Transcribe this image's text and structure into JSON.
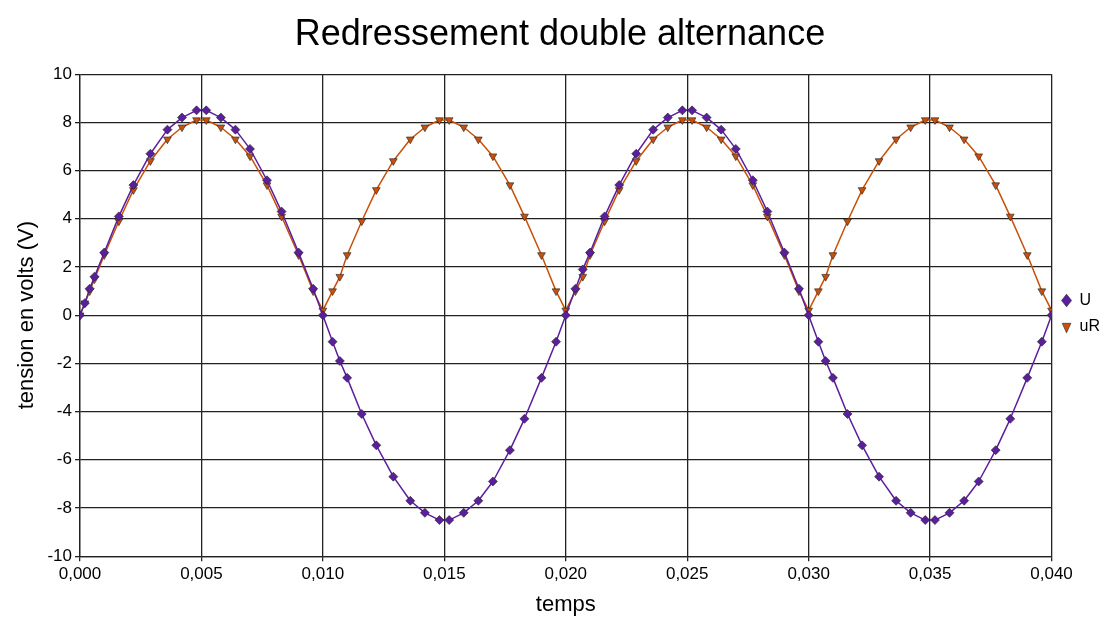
{
  "chart_data": {
    "type": "line",
    "title": "Redressement double alternance",
    "xlabel": "temps",
    "ylabel": "tension en volts (V)",
    "x": [
      0,
      0.0002,
      0.0004,
      0.0006,
      0.001,
      0.0016,
      0.0022,
      0.0029,
      0.0036,
      0.0042,
      0.0048,
      0.0052,
      0.0058,
      0.0064,
      0.007,
      0.0077,
      0.0083,
      0.009,
      0.0096,
      0.01,
      0.0104,
      0.0107,
      0.011,
      0.0116,
      0.0122,
      0.0129,
      0.0136,
      0.0142,
      0.0148,
      0.0152,
      0.0158,
      0.0164,
      0.017,
      0.0177,
      0.0183,
      0.019,
      0.0196,
      0.02,
      0.0204,
      0.0207,
      0.021,
      0.0216,
      0.0222,
      0.0229,
      0.0236,
      0.0242,
      0.0248,
      0.0252,
      0.0258,
      0.0264,
      0.027,
      0.0277,
      0.0283,
      0.029,
      0.0296,
      0.03,
      0.0304,
      0.0307,
      0.031,
      0.0316,
      0.0322,
      0.0329,
      0.0336,
      0.0342,
      0.0348,
      0.0352,
      0.0358,
      0.0364,
      0.037,
      0.0377,
      0.0383,
      0.039,
      0.0396,
      0.04
    ],
    "series": [
      {
        "name": "U",
        "color": "#5b1f9e",
        "marker": "diamond",
        "values": [
          0,
          0.5,
          1.1,
          1.6,
          2.6,
          4.1,
          5.4,
          6.7,
          7.7,
          8.2,
          8.5,
          8.5,
          8.2,
          7.7,
          6.9,
          5.6,
          4.3,
          2.6,
          1.1,
          0,
          -1.1,
          -1.9,
          -2.6,
          -4.1,
          -5.4,
          -6.7,
          -7.7,
          -8.2,
          -8.5,
          -8.5,
          -8.2,
          -7.7,
          -6.9,
          -5.6,
          -4.3,
          -2.6,
          -1.1,
          0,
          1.1,
          1.9,
          2.6,
          4.1,
          5.4,
          6.7,
          7.7,
          8.2,
          8.5,
          8.5,
          8.2,
          7.7,
          6.9,
          5.6,
          4.3,
          2.6,
          1.1,
          0,
          -1.1,
          -1.9,
          -2.6,
          -4.1,
          -5.4,
          -6.7,
          -7.7,
          -8.2,
          -8.5,
          -8.5,
          -8.2,
          -7.7,
          -6.9,
          -5.6,
          -4.3,
          -2.6,
          -1.1,
          0
        ]
      },
      {
        "name": "uR",
        "color": "#c8500a",
        "marker": "triangle",
        "values": [
          0,
          0.5,
          1.0,
          1.5,
          2.5,
          3.9,
          5.2,
          6.4,
          7.3,
          7.8,
          8.1,
          8.1,
          7.8,
          7.3,
          6.6,
          5.4,
          4.1,
          2.5,
          1.0,
          0.2,
          1.0,
          1.6,
          2.5,
          3.9,
          5.2,
          6.4,
          7.3,
          7.8,
          8.1,
          8.1,
          7.8,
          7.3,
          6.6,
          5.4,
          4.1,
          2.5,
          1.0,
          0.2,
          1.0,
          1.6,
          2.5,
          3.9,
          5.2,
          6.4,
          7.3,
          7.8,
          8.1,
          8.1,
          7.8,
          7.3,
          6.6,
          5.4,
          4.1,
          2.5,
          1.0,
          0.2,
          1.0,
          1.6,
          2.5,
          3.9,
          5.2,
          6.4,
          7.3,
          7.8,
          8.1,
          8.1,
          7.8,
          7.3,
          6.6,
          5.4,
          4.1,
          2.5,
          1.0,
          0.2
        ]
      }
    ],
    "xlim": [
      0,
      0.04
    ],
    "xticks": [
      {
        "value": 0,
        "label": "0,000"
      },
      {
        "value": 0.005,
        "label": "0,005"
      },
      {
        "value": 0.01,
        "label": "0,010"
      },
      {
        "value": 0.015,
        "label": "0,015"
      },
      {
        "value": 0.02,
        "label": "0,020"
      },
      {
        "value": 0.025,
        "label": "0,025"
      },
      {
        "value": 0.03,
        "label": "0,030"
      },
      {
        "value": 0.035,
        "label": "0,035"
      },
      {
        "value": 0.04,
        "label": "0,040"
      }
    ],
    "ylim": [
      -10,
      10
    ],
    "yticks": [
      -10,
      -8,
      -6,
      -4,
      -2,
      0,
      2,
      4,
      6,
      8,
      10
    ],
    "grid": true,
    "legend": "right"
  }
}
